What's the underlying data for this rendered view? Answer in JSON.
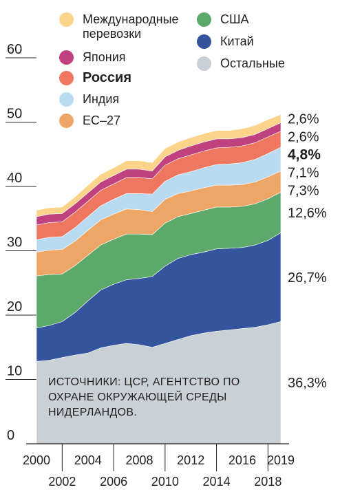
{
  "chart_data": {
    "type": "area",
    "stacked": true,
    "x": [
      2000,
      2001,
      2002,
      2003,
      2004,
      2005,
      2006,
      2007,
      2008,
      2009,
      2010,
      2011,
      2012,
      2013,
      2014,
      2015,
      2016,
      2017,
      2018,
      2019
    ],
    "ylim": [
      0,
      60
    ],
    "y_ticks": [
      "0",
      "10",
      "20",
      "30",
      "40",
      "50",
      "60"
    ],
    "x_ticks_top": [
      "2000",
      "2004",
      "2008",
      "2012",
      "2016",
      "2019"
    ],
    "x_ticks_bottom": [
      "2002",
      "2006",
      "2010",
      "2014",
      "2018"
    ],
    "grid": false,
    "legend_position": "top",
    "series": [
      {
        "name": "Остальные",
        "color": "#c9d0d6",
        "share_label": "36,3%",
        "values": [
          12.8,
          13.0,
          13.4,
          13.8,
          14.1,
          14.9,
          15.3,
          15.6,
          15.4,
          15.0,
          15.6,
          16.2,
          16.8,
          17.2,
          17.5,
          17.7,
          17.9,
          18.1,
          18.5,
          19.0
        ]
      },
      {
        "name": "Китай",
        "color": "#34559e",
        "share_label": "26,7%",
        "values": [
          5.2,
          5.4,
          5.6,
          6.6,
          8.1,
          9.0,
          9.5,
          9.9,
          10.3,
          11.0,
          12.0,
          12.6,
          12.6,
          12.6,
          12.8,
          12.7,
          12.6,
          12.8,
          13.1,
          13.8
        ]
      },
      {
        "name": "США",
        "color": "#5da86b",
        "share_label": "12,6%",
        "values": [
          8.1,
          7.9,
          7.4,
          7.3,
          7.1,
          7.0,
          7.0,
          7.1,
          6.9,
          6.5,
          6.7,
          6.5,
          6.4,
          6.5,
          6.5,
          6.4,
          6.4,
          6.4,
          6.5,
          6.3
        ]
      },
      {
        "name": "ЕС–27",
        "color": "#eda666",
        "share_label": "7,3%",
        "values": [
          3.7,
          3.8,
          3.8,
          3.8,
          3.9,
          3.9,
          3.9,
          3.9,
          3.8,
          3.6,
          3.7,
          3.6,
          3.5,
          3.5,
          3.4,
          3.4,
          3.4,
          3.4,
          3.4,
          3.3
        ]
      },
      {
        "name": "Индия",
        "color": "#b8dbf2",
        "share_label": "7,1%",
        "values": [
          1.9,
          2.0,
          2.0,
          2.1,
          2.1,
          2.2,
          2.3,
          2.4,
          2.5,
          2.7,
          2.8,
          2.9,
          3.0,
          3.1,
          3.2,
          3.3,
          3.4,
          3.5,
          3.6,
          3.7
        ]
      },
      {
        "name": "Россия",
        "color": "#ef7760",
        "share_label": "4,8%",
        "values": [
          2.3,
          2.3,
          2.3,
          2.4,
          2.4,
          2.4,
          2.4,
          2.5,
          2.5,
          2.4,
          2.5,
          2.5,
          2.6,
          2.6,
          2.6,
          2.6,
          2.6,
          2.6,
          2.6,
          2.5
        ]
      },
      {
        "name": "Япония",
        "color": "#c0417f",
        "share_label": "2,6%",
        "values": [
          1.3,
          1.3,
          1.3,
          1.3,
          1.3,
          1.3,
          1.3,
          1.3,
          1.3,
          1.2,
          1.3,
          1.3,
          1.4,
          1.4,
          1.4,
          1.3,
          1.3,
          1.3,
          1.3,
          1.3
        ]
      },
      {
        "name": "Международные перевозки",
        "color": "#fbd489",
        "share_label": "2,6%",
        "values": [
          1.0,
          1.0,
          1.0,
          1.1,
          1.2,
          1.2,
          1.2,
          1.3,
          1.3,
          1.3,
          1.3,
          1.3,
          1.3,
          1.3,
          1.3,
          1.3,
          1.4,
          1.4,
          1.4,
          1.3
        ]
      }
    ],
    "highlight_series": "Россия",
    "annotation": "ИСТОЧНИКИ: ЦСР, АГЕНТСТВО ПО ОХРАНЕ ОКРУЖАЮЩЕЙ СРЕДЫ НИДЕРЛАНДОВ."
  },
  "legend": {
    "col1": [
      {
        "label": "Международные перевозки",
        "color": "#fbd489",
        "bold": false
      },
      {
        "label": "Япония",
        "color": "#c0417f",
        "bold": false
      },
      {
        "label": "Россия",
        "color": "#ef7760",
        "bold": true
      },
      {
        "label": "Индия",
        "color": "#b8dbf2",
        "bold": false
      },
      {
        "label": "ЕС–27",
        "color": "#eda666",
        "bold": false
      }
    ],
    "col2": [
      {
        "label": "США",
        "color": "#5da86b",
        "bold": false
      },
      {
        "label": "Китай",
        "color": "#34559e",
        "bold": false
      },
      {
        "label": "Остальные",
        "color": "#c9d0d6",
        "bold": false
      }
    ]
  },
  "source_text": "ИСТОЧНИКИ: ЦСР, АГЕНТСТВО ПО ОХРАНЕ ОКРУЖАЮЩЕЙ СРЕДЫ НИДЕРЛАНДОВ."
}
